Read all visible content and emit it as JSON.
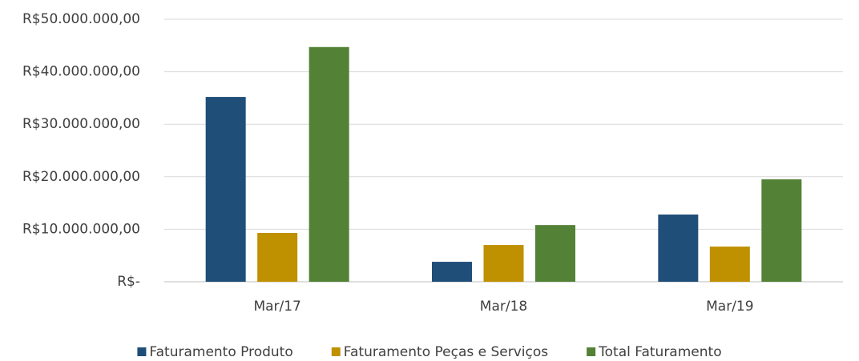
{
  "chart_data": {
    "type": "bar",
    "categories": [
      "Mar/17",
      "Mar/18",
      "Mar/19"
    ],
    "series": [
      {
        "name": "Faturamento Produto",
        "color": "#1f4e79",
        "values": [
          35200000,
          3800000,
          12800000
        ]
      },
      {
        "name": "Faturamento Peças e Serviços",
        "color": "#bf9000",
        "values": [
          9300000,
          7000000,
          6700000
        ]
      },
      {
        "name": "Total Faturamento",
        "color": "#538135",
        "values": [
          44700000,
          10800000,
          19500000
        ]
      }
    ],
    "ylim": [
      0,
      50000000
    ],
    "yticks": [
      {
        "value": 0,
        "label": "R$-"
      },
      {
        "value": 10000000,
        "label": "R$10.000.000,00"
      },
      {
        "value": 20000000,
        "label": "R$20.000.000,00"
      },
      {
        "value": 30000000,
        "label": "R$30.000.000,00"
      },
      {
        "value": 40000000,
        "label": "R$40.000.000,00"
      },
      {
        "value": 50000000,
        "label": "R$50.000.000,00"
      }
    ],
    "grid": true,
    "legend": "bottom"
  }
}
